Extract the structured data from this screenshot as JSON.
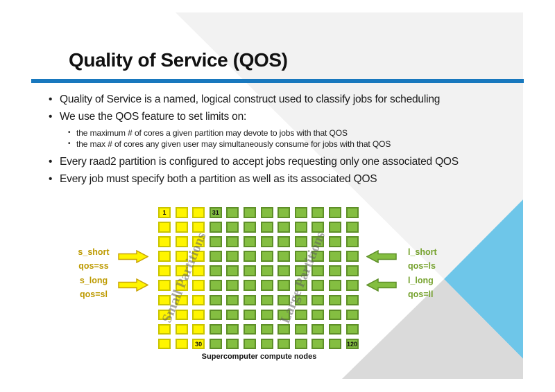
{
  "slide": {
    "title": "Quality of Service (QOS)",
    "bullets": {
      "b1": "Quality of Service is a named, logical construct used to classify jobs for scheduling",
      "b2": "We use the QOS feature to set limits on:",
      "sub1": "the maximum # of cores a given partition may devote to jobs with that QOS",
      "sub2": "the max # of cores any given user may simultaneously consume for jobs with that QOS",
      "b3": "Every raad2 partition is configured to accept jobs requesting only one associated QOS",
      "b4": "Every job must specify both a partition as well as its associated QOS"
    }
  },
  "diagram": {
    "grid": {
      "columns": 12,
      "rows": 10,
      "yellow_columns": 3,
      "corner_labels": {
        "first_yellow": "1",
        "last_yellow": "30",
        "first_green": "31",
        "last_green": "120"
      }
    },
    "watermarks": {
      "small": "Small Partitions",
      "large": "Large Partitions"
    },
    "caption": "Supercomputer compute nodes",
    "left_arrows": [
      {
        "name": "s_short",
        "qos": "qos=ss"
      },
      {
        "name": "s_long",
        "qos": "qos=sl"
      }
    ],
    "right_arrows": [
      {
        "name": "l_short",
        "qos": "qos=ls"
      },
      {
        "name": "l_long",
        "qos": "qos=ll"
      }
    ]
  },
  "colors": {
    "title_underline": "#1878be",
    "light_gray_polygon": "#f2f2f2",
    "medium_gray_triangle": "#dadada",
    "sky_blue_triangle": "#6ec6e9",
    "yellow_cell_fill": "#fff500",
    "yellow_cell_border": "#c9c400",
    "green_cell_fill": "#84be41",
    "green_cell_border": "#5e8f28",
    "yellow_label_text": "#bd9a00",
    "green_label_text": "#76a22e"
  }
}
